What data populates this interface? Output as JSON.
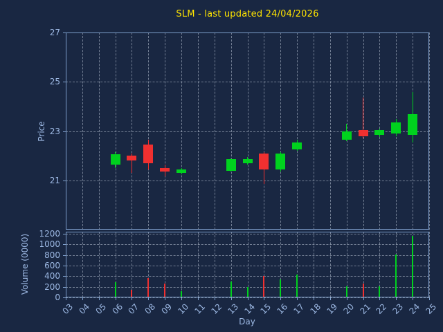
{
  "chart_data": {
    "type": "candlestick",
    "title": "SLM - last updated 24/04/2026",
    "xlabel": "Day",
    "price_axis": {
      "label": "Price",
      "ticks": [
        21,
        23,
        25,
        27
      ],
      "range": [
        19,
        27
      ]
    },
    "volume_axis": {
      "label": "Volume (0000)",
      "ticks": [
        0,
        200,
        400,
        600,
        800,
        1000,
        1200
      ],
      "range": [
        0,
        1240
      ]
    },
    "x_ticks": [
      "03",
      "04",
      "05",
      "06",
      "07",
      "08",
      "09",
      "10",
      "11",
      "12",
      "13",
      "14",
      "15",
      "16",
      "17",
      "18",
      "19",
      "20",
      "21",
      "22",
      "23",
      "24",
      "25"
    ],
    "x_range": [
      3,
      25
    ],
    "grid": true,
    "colors": {
      "background": "#192742",
      "title": "#ffe400",
      "axis_text": "#9db9e4",
      "spine": "#7e9fcc",
      "grid": "rgba(205,215,230,0.5)",
      "up": "#00d21e",
      "down": "#f03030"
    },
    "candles": [
      {
        "day": 6,
        "open": 21.65,
        "high": 22.15,
        "low": 21.5,
        "close": 22.05,
        "volume": 290
      },
      {
        "day": 7,
        "open": 22.0,
        "high": 22.1,
        "low": 21.3,
        "close": 21.8,
        "volume": 140
      },
      {
        "day": 8,
        "open": 22.45,
        "high": 22.65,
        "low": 21.45,
        "close": 21.7,
        "volume": 360
      },
      {
        "day": 9,
        "open": 21.5,
        "high": 21.65,
        "low": 21.15,
        "close": 21.35,
        "volume": 260
      },
      {
        "day": 10,
        "open": 21.3,
        "high": 21.5,
        "low": 21.25,
        "close": 21.45,
        "volume": 120
      },
      {
        "day": 13,
        "open": 21.4,
        "high": 21.9,
        "low": 21.35,
        "close": 21.85,
        "volume": 300
      },
      {
        "day": 14,
        "open": 21.7,
        "high": 21.95,
        "low": 21.65,
        "close": 21.85,
        "volume": 190
      },
      {
        "day": 15,
        "open": 22.1,
        "high": 22.15,
        "low": 20.85,
        "close": 21.45,
        "volume": 400
      },
      {
        "day": 16,
        "open": 21.45,
        "high": 22.15,
        "low": 21.35,
        "close": 22.1,
        "volume": 340
      },
      {
        "day": 17,
        "open": 22.25,
        "high": 22.65,
        "low": 22.2,
        "close": 22.55,
        "volume": 430
      },
      {
        "day": 20,
        "open": 22.65,
        "high": 23.3,
        "low": 22.6,
        "close": 23.0,
        "volume": 210
      },
      {
        "day": 21,
        "open": 23.05,
        "high": 24.35,
        "low": 22.7,
        "close": 22.8,
        "volume": 260
      },
      {
        "day": 22,
        "open": 22.85,
        "high": 23.1,
        "low": 22.75,
        "close": 23.05,
        "volume": 210
      },
      {
        "day": 23,
        "open": 22.9,
        "high": 23.5,
        "low": 22.8,
        "close": 23.35,
        "volume": 810
      },
      {
        "day": 24,
        "open": 22.85,
        "high": 24.6,
        "low": 22.55,
        "close": 23.7,
        "volume": 1160
      }
    ]
  }
}
